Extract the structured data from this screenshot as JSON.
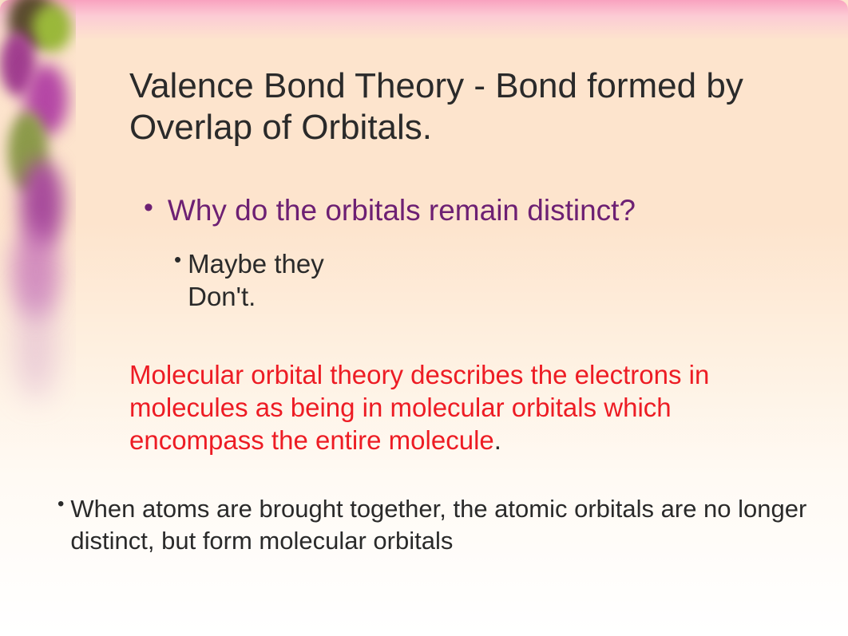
{
  "slide": {
    "title": "Valence Bond Theory - Bond formed by Overlap of Orbitals.",
    "main_bullet": "Why do the orbitals remain distinct?",
    "sub_bullet": "Maybe they\nDon't.",
    "red_paragraph": "Molecular orbital theory describes the electrons in molecules as being in molecular orbitals which encompass the entire molecule",
    "red_paragraph_period": ".",
    "bottom_bullet": "When atoms are brought together, the atomic orbitals are no longer distinct, but form molecular orbitals"
  },
  "style": {
    "background_gradient_top": "#fde4cd",
    "background_gradient_bottom": "#ffffff",
    "top_border_color": "#f89bbe",
    "title_color": "#2a2a2a",
    "title_fontsize": 44,
    "main_bullet_color": "#6d2073",
    "main_bullet_fontsize": 37,
    "sub_bullet_color": "#2a2a2a",
    "sub_bullet_fontsize": 33,
    "red_text_color": "#ed1c24",
    "red_text_fontsize": 33,
    "bottom_bullet_color": "#2a2a2a",
    "bottom_bullet_fontsize": 31,
    "blob_colors": [
      "#5a4a2e",
      "#9ab83a",
      "#a03d8e",
      "#b547a5",
      "#8c9a4a",
      "#a84c9b",
      "#c168b5",
      "#d8a8cc"
    ],
    "font_family": "Verdana"
  }
}
